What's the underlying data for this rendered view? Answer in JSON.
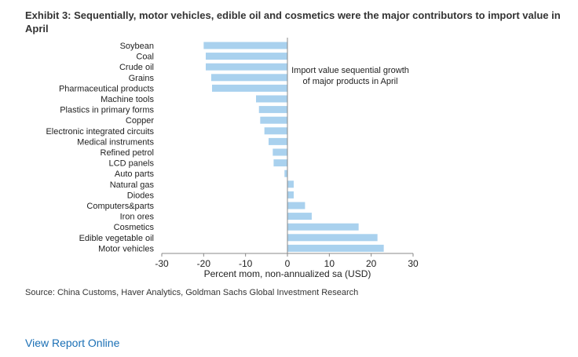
{
  "header": {
    "title": "Exhibit 3: Sequentially, motor vehicles, edible oil and cosmetics were the major contributors to import value in April"
  },
  "chart_data": {
    "type": "bar",
    "orientation": "horizontal",
    "categories": [
      "Soybean",
      "Coal",
      "Crude oil",
      "Grains",
      "Pharmaceutical products",
      "Machine tools",
      "Plastics in primary forms",
      "Copper",
      "Electronic integrated circuits",
      "Medical instruments",
      "Refined petrol",
      "LCD panels",
      "Auto parts",
      "Natural gas",
      "Diodes",
      "Computers&parts",
      "Iron ores",
      "Cosmetics",
      "Edible vegetable oil",
      "Motor vehicles"
    ],
    "values": [
      -20.0,
      -19.5,
      -19.5,
      -18.2,
      -18.0,
      -7.5,
      -6.8,
      -6.5,
      -5.5,
      -4.5,
      -3.5,
      -3.3,
      -0.7,
      1.5,
      1.5,
      4.2,
      5.8,
      17.0,
      21.5,
      23.0
    ],
    "annotation": "Import value sequential growth of major products in April",
    "xlabel": "Percent mom, non-annualized sa (USD)",
    "ylabel": "",
    "xlim": [
      -30,
      30
    ],
    "xticks": [
      -30,
      -20,
      -10,
      0,
      10,
      20,
      30
    ],
    "bar_color": "#a9d1ee",
    "grid": false
  },
  "footer": {
    "source": "Source: China Customs, Haver Analytics, Goldman Sachs Global Investment Research",
    "link_label": "View Report Online",
    "link_color": "#1a6fb5"
  }
}
